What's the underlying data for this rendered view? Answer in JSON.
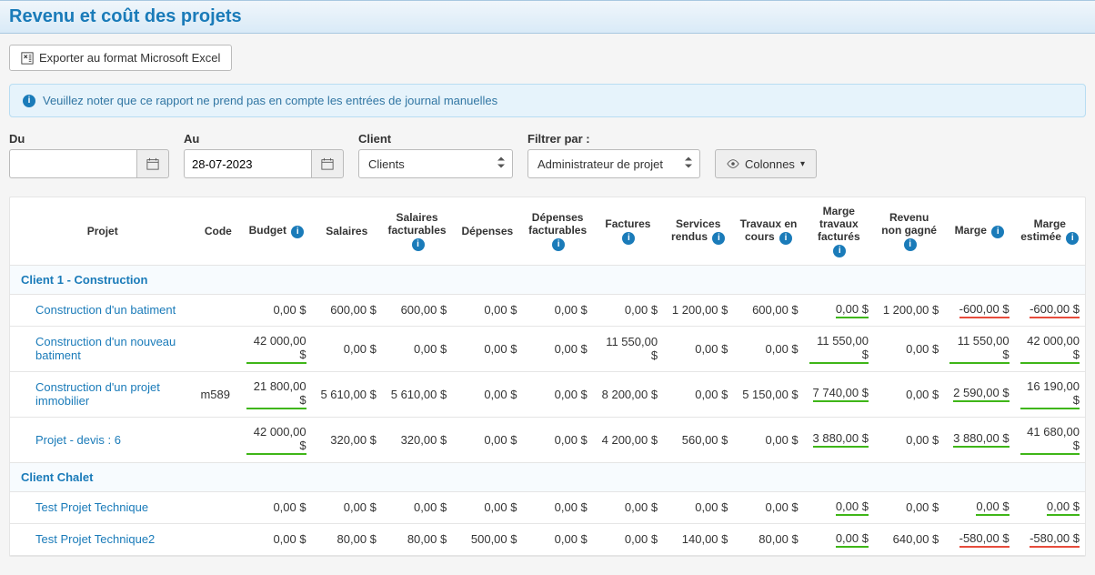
{
  "header": {
    "title": "Revenu et coût des projets"
  },
  "toolbar": {
    "export_label": "Exporter au format Microsoft Excel"
  },
  "alert": {
    "text": "Veuillez noter que ce rapport ne prend pas en compte les entrées de journal manuelles"
  },
  "filters": {
    "from_label": "Du",
    "from_value": "",
    "to_label": "Au",
    "to_value": "28-07-2023",
    "client_label": "Client",
    "client_value": "Clients",
    "filterby_label": "Filtrer par :",
    "filterby_value": "Administrateur de projet",
    "columns_label": "Colonnes"
  },
  "table": {
    "headers": {
      "project": "Projet",
      "code": "Code",
      "budget": "Budget",
      "salaries": "Salaires",
      "billable_salaries": "Salaires facturables",
      "expenses": "Dépenses",
      "billable_expenses": "Dépenses facturables",
      "invoices": "Factures",
      "services": "Services rendus",
      "wip": "Travaux en cours",
      "margin_billed": "Marge travaux facturés",
      "unearned": "Revenu non gagné",
      "margin": "Marge",
      "est_margin": "Marge estimée"
    },
    "groups": [
      {
        "label": "Client 1 - Construction",
        "rows": [
          {
            "project": "Construction d'un batiment",
            "code": "",
            "budget": {
              "v": "0,00 $"
            },
            "salaries": {
              "v": "600,00 $"
            },
            "bsal": {
              "v": "600,00 $"
            },
            "exp": {
              "v": "0,00 $"
            },
            "bexp": {
              "v": "0,00 $"
            },
            "inv": {
              "v": "0,00 $"
            },
            "serv": {
              "v": "1 200,00 $"
            },
            "wip": {
              "v": "600,00 $"
            },
            "mbill": {
              "v": "0,00 $",
              "u": "green"
            },
            "unearn": {
              "v": "1 200,00 $"
            },
            "margin": {
              "v": "-600,00 $",
              "u": "red"
            },
            "emargin": {
              "v": "-600,00 $",
              "u": "red"
            }
          },
          {
            "project": "Construction d'un nouveau batiment",
            "code": "",
            "budget": {
              "v": "42 000,00 $",
              "u": "green"
            },
            "salaries": {
              "v": "0,00 $"
            },
            "bsal": {
              "v": "0,00 $"
            },
            "exp": {
              "v": "0,00 $"
            },
            "bexp": {
              "v": "0,00 $"
            },
            "inv": {
              "v": "11 550,00 $"
            },
            "serv": {
              "v": "0,00 $"
            },
            "wip": {
              "v": "0,00 $"
            },
            "mbill": {
              "v": "11 550,00 $",
              "u": "green"
            },
            "unearn": {
              "v": "0,00 $"
            },
            "margin": {
              "v": "11 550,00 $",
              "u": "green"
            },
            "emargin": {
              "v": "42 000,00 $",
              "u": "green"
            }
          },
          {
            "project": "Construction d'un projet immobilier",
            "code": "m589",
            "budget": {
              "v": "21 800,00 $",
              "u": "green"
            },
            "salaries": {
              "v": "5 610,00 $"
            },
            "bsal": {
              "v": "5 610,00 $"
            },
            "exp": {
              "v": "0,00 $"
            },
            "bexp": {
              "v": "0,00 $"
            },
            "inv": {
              "v": "8 200,00 $"
            },
            "serv": {
              "v": "0,00 $"
            },
            "wip": {
              "v": "5 150,00 $"
            },
            "mbill": {
              "v": "7 740,00 $",
              "u": "green"
            },
            "unearn": {
              "v": "0,00 $"
            },
            "margin": {
              "v": "2 590,00 $",
              "u": "green"
            },
            "emargin": {
              "v": "16 190,00 $",
              "u": "green"
            }
          },
          {
            "project": "Projet - devis : 6",
            "code": "",
            "budget": {
              "v": "42 000,00 $",
              "u": "green"
            },
            "salaries": {
              "v": "320,00 $"
            },
            "bsal": {
              "v": "320,00 $"
            },
            "exp": {
              "v": "0,00 $"
            },
            "bexp": {
              "v": "0,00 $"
            },
            "inv": {
              "v": "4 200,00 $"
            },
            "serv": {
              "v": "560,00 $"
            },
            "wip": {
              "v": "0,00 $"
            },
            "mbill": {
              "v": "3 880,00 $",
              "u": "green"
            },
            "unearn": {
              "v": "0,00 $"
            },
            "margin": {
              "v": "3 880,00 $",
              "u": "green"
            },
            "emargin": {
              "v": "41 680,00 $",
              "u": "green"
            }
          }
        ]
      },
      {
        "label": "Client Chalet",
        "rows": [
          {
            "project": "Test Projet Technique",
            "code": "",
            "budget": {
              "v": "0,00 $"
            },
            "salaries": {
              "v": "0,00 $"
            },
            "bsal": {
              "v": "0,00 $"
            },
            "exp": {
              "v": "0,00 $"
            },
            "bexp": {
              "v": "0,00 $"
            },
            "inv": {
              "v": "0,00 $"
            },
            "serv": {
              "v": "0,00 $"
            },
            "wip": {
              "v": "0,00 $"
            },
            "mbill": {
              "v": "0,00 $",
              "u": "green"
            },
            "unearn": {
              "v": "0,00 $"
            },
            "margin": {
              "v": "0,00 $",
              "u": "green"
            },
            "emargin": {
              "v": "0,00 $",
              "u": "green"
            }
          },
          {
            "project": "Test Projet Technique2",
            "code": "",
            "budget": {
              "v": "0,00 $"
            },
            "salaries": {
              "v": "80,00 $"
            },
            "bsal": {
              "v": "80,00 $"
            },
            "exp": {
              "v": "500,00 $"
            },
            "bexp": {
              "v": "0,00 $"
            },
            "inv": {
              "v": "0,00 $"
            },
            "serv": {
              "v": "140,00 $"
            },
            "wip": {
              "v": "80,00 $"
            },
            "mbill": {
              "v": "0,00 $",
              "u": "green"
            },
            "unearn": {
              "v": "640,00 $"
            },
            "margin": {
              "v": "-580,00 $",
              "u": "red"
            },
            "emargin": {
              "v": "-580,00 $",
              "u": "red"
            }
          }
        ]
      }
    ]
  },
  "colors": {
    "primary": "#1a7bb9",
    "green": "#3fb618",
    "red": "#e74c3c",
    "header_bg_top": "#f0f6fb",
    "header_bg_bottom": "#d9eaf7",
    "alert_bg": "#e6f3fb",
    "alert_border": "#b8ddf2",
    "group_bg": "#f7fbfe"
  }
}
